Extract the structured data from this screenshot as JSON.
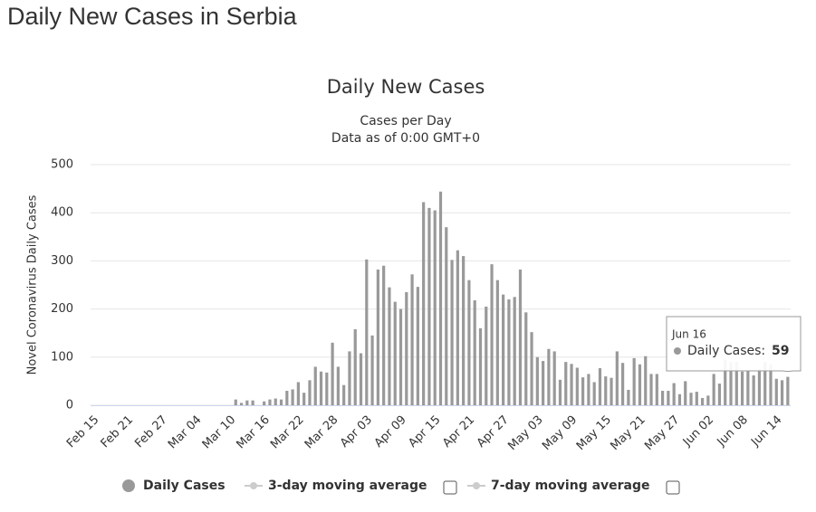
{
  "page_title": "Daily New Cases in Serbia",
  "chart_data": {
    "type": "bar",
    "title": "Daily New Cases",
    "subtitle": [
      "Cases per Day",
      "Data as of 0:00 GMT+0"
    ],
    "y_label": "Novel Coronavirus Daily Cases",
    "categories": [
      "Feb 15",
      null,
      null,
      null,
      null,
      null,
      "Feb 21",
      null,
      null,
      null,
      null,
      null,
      "Feb 27",
      null,
      null,
      null,
      null,
      null,
      "Mar 04",
      null,
      null,
      null,
      null,
      null,
      "Mar 10",
      null,
      null,
      null,
      null,
      null,
      "Mar 16",
      null,
      null,
      null,
      null,
      null,
      "Mar 22",
      null,
      null,
      null,
      null,
      null,
      "Mar 28",
      null,
      null,
      null,
      null,
      null,
      "Apr 03",
      null,
      null,
      null,
      null,
      null,
      "Apr 09",
      null,
      null,
      null,
      null,
      null,
      "Apr 15",
      null,
      null,
      null,
      null,
      null,
      "Apr 21",
      null,
      null,
      null,
      null,
      null,
      "Apr 27",
      null,
      null,
      null,
      null,
      null,
      "May 03",
      null,
      null,
      null,
      null,
      null,
      "May 09",
      null,
      null,
      null,
      null,
      null,
      "May 15",
      null,
      null,
      null,
      null,
      null,
      "May 21",
      null,
      null,
      null,
      null,
      null,
      "May 27",
      null,
      null,
      null,
      null,
      null,
      "Jun 02",
      null,
      null,
      null,
      null,
      null,
      "Jun 08",
      null,
      null,
      null,
      null,
      null,
      "Jun 14",
      null,
      null
    ],
    "series": [
      {
        "name": "Daily Cases",
        "color": "#999999",
        "values": [
          0,
          0,
          0,
          0,
          0,
          0,
          0,
          0,
          0,
          0,
          0,
          0,
          0,
          0,
          0,
          0,
          0,
          0,
          0,
          0,
          0,
          0,
          0,
          0,
          0,
          12,
          5,
          10,
          10,
          0,
          8,
          12,
          14,
          12,
          30,
          33,
          48,
          26,
          52,
          80,
          70,
          68,
          130,
          80,
          42,
          112,
          158,
          108,
          303,
          145,
          282,
          290,
          245,
          215,
          200,
          235,
          272,
          246,
          422,
          410,
          405,
          444,
          370,
          302,
          322,
          310,
          260,
          218,
          160,
          205,
          293,
          260,
          230,
          220,
          225,
          282,
          193,
          152,
          100,
          92,
          117,
          112,
          53,
          90,
          86,
          78,
          58,
          65,
          48,
          77,
          60,
          57,
          112,
          88,
          32,
          98,
          85,
          102,
          65,
          65,
          30,
          30,
          46,
          23,
          50,
          26,
          28,
          15,
          20,
          65,
          45,
          95,
          90,
          90,
          70,
          72,
          62,
          75,
          90,
          85,
          55,
          52,
          59
        ]
      }
    ],
    "hidden_series": [
      {
        "name": "3-day moving average"
      },
      {
        "name": "7-day moving average"
      }
    ],
    "ylim": [
      0,
      500
    ],
    "yticks": [
      0,
      100,
      200,
      300,
      400,
      500
    ],
    "grid": true,
    "tooltip": {
      "date": "Jun 16",
      "label": "Daily Cases:",
      "index": 122
    }
  }
}
